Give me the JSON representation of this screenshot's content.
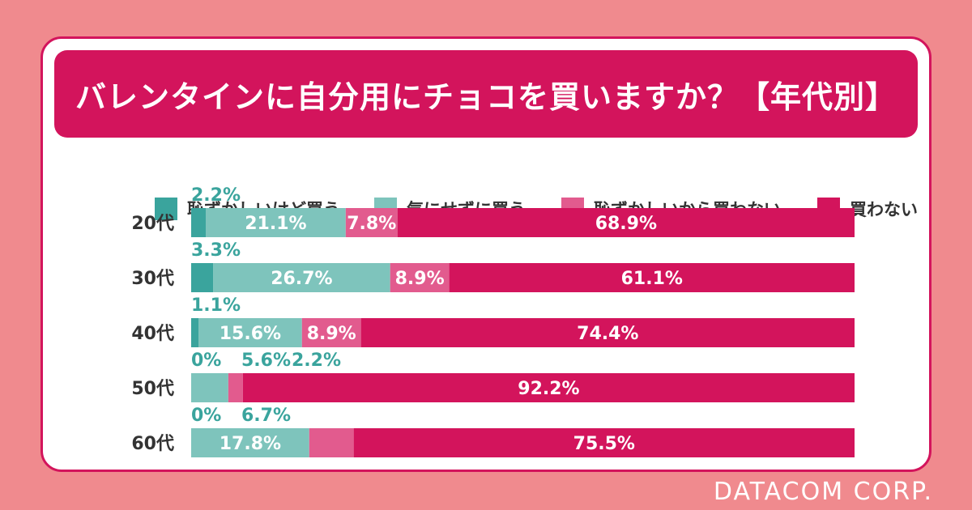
{
  "brand": "DATACOM CORP.",
  "colors": {
    "background": "#f08a8e",
    "accent": "#d3145c",
    "series": [
      "#3aa49d",
      "#7ec4bc",
      "#e25b8e",
      "#d3145c"
    ]
  },
  "chart_data": {
    "type": "bar",
    "orientation": "horizontal",
    "stacked": true,
    "title": "バレンタインに自分用にチョコを買いますか？【年代別】",
    "legend_position": "top",
    "categories": [
      "20代",
      "30代",
      "40代",
      "50代",
      "60代"
    ],
    "series": [
      {
        "name": "恥ずかしいけど買う",
        "color": "#3aa49d",
        "values": [
          2.2,
          3.3,
          1.1,
          0,
          0
        ]
      },
      {
        "name": "気にせずに買う",
        "color": "#7ec4bc",
        "values": [
          21.1,
          26.7,
          15.6,
          5.6,
          17.8
        ]
      },
      {
        "name": "恥ずかしいから買わない",
        "color": "#e25b8e",
        "values": [
          7.8,
          8.9,
          8.9,
          2.2,
          6.7
        ]
      },
      {
        "name": "買わない",
        "color": "#d3145c",
        "values": [
          68.9,
          61.1,
          74.4,
          92.2,
          75.5
        ]
      }
    ],
    "value_labels": [
      [
        "2.2%",
        "21.1%",
        "7.8%",
        "68.9%"
      ],
      [
        "3.3%",
        "26.7%",
        "8.9%",
        "61.1%"
      ],
      [
        "1.1%",
        "15.6%",
        "8.9%",
        "74.4%"
      ],
      [
        "0%",
        "5.6%",
        "2.2%",
        "92.2%"
      ],
      [
        "0%",
        "17.8%",
        "6.7%",
        "75.5%"
      ]
    ],
    "xlim": [
      0,
      100
    ]
  }
}
